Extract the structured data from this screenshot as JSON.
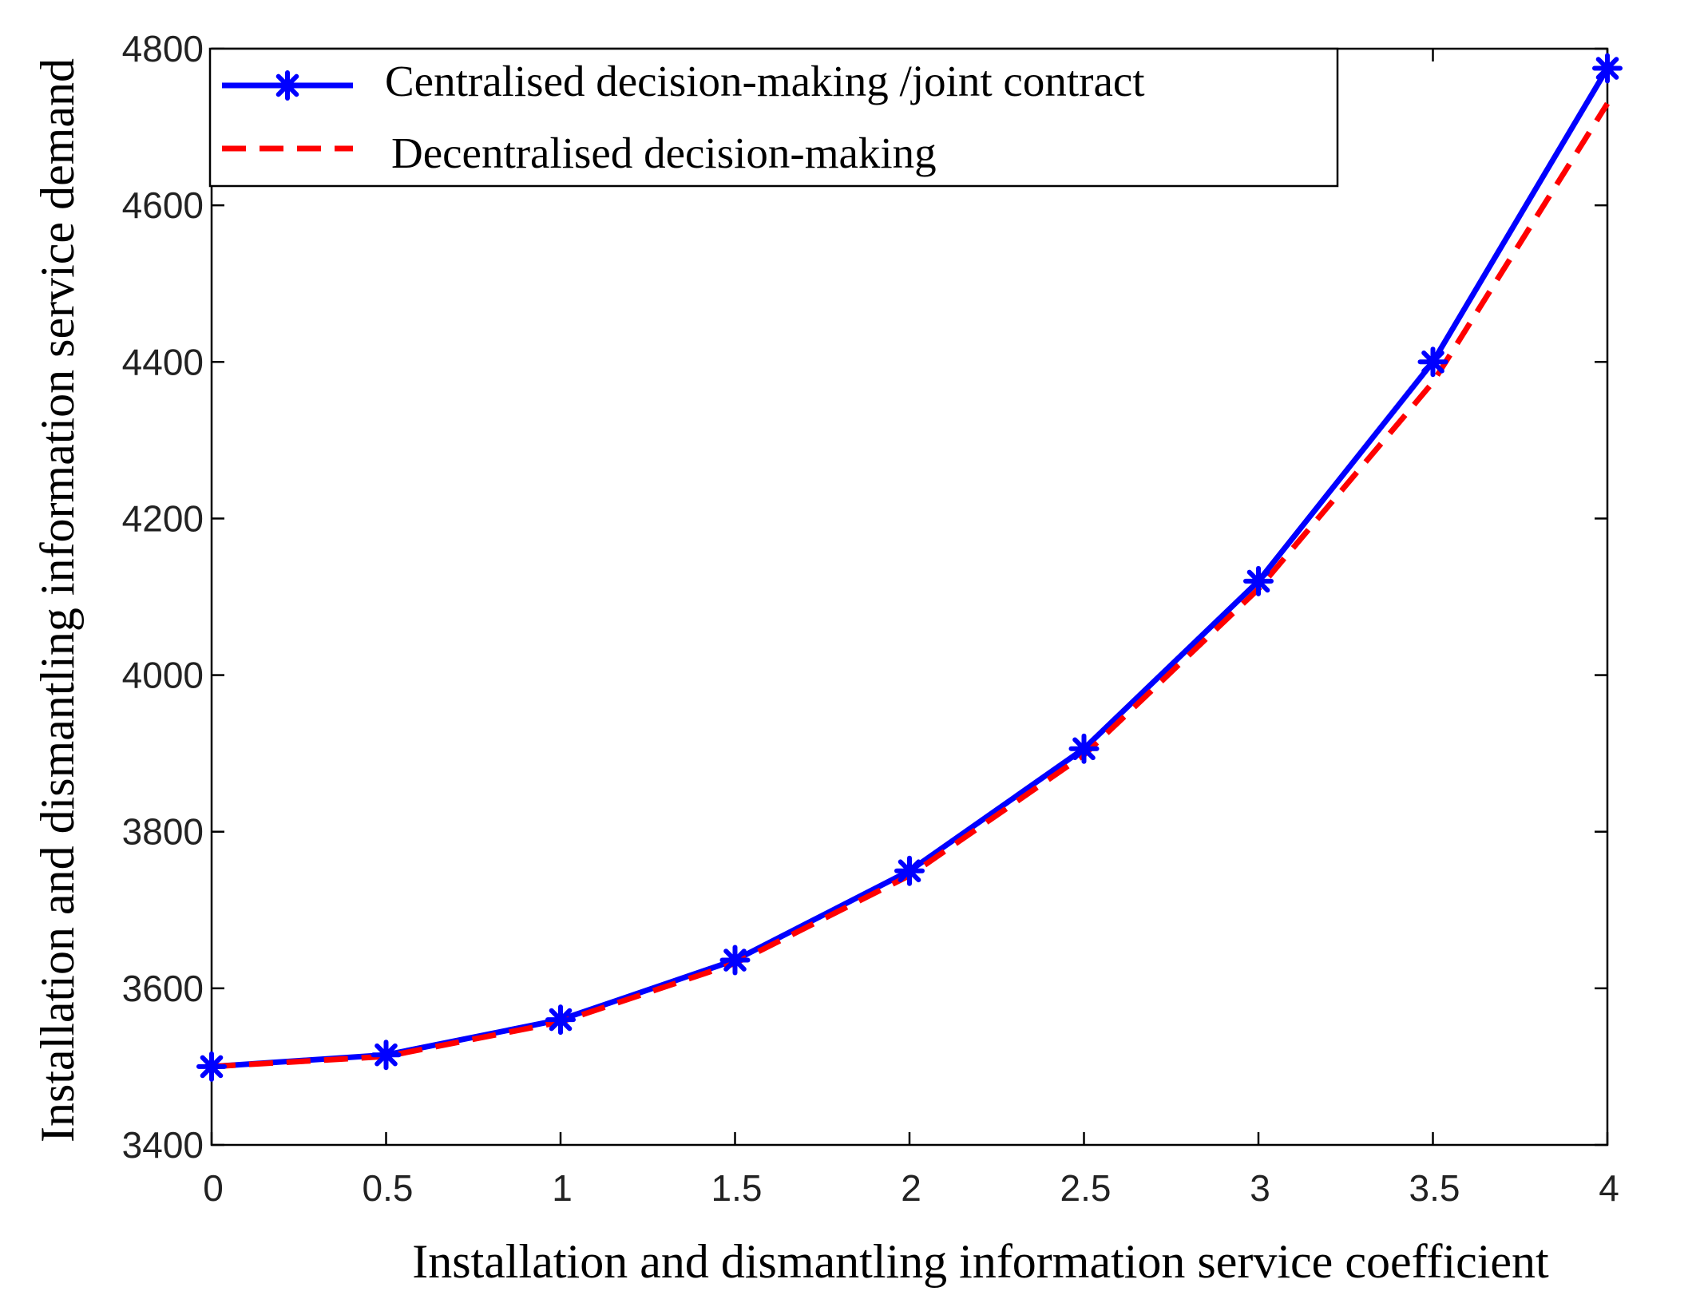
{
  "chart_data": {
    "type": "line",
    "title": "",
    "xlabel": "Installation and dismantling information service coefficient",
    "ylabel": "Installation and dismantling information service demand",
    "xlim": [
      0,
      4
    ],
    "ylim": [
      3400,
      4800
    ],
    "x_ticks": [
      0,
      0.5,
      1,
      1.5,
      2,
      2.5,
      3,
      3.5,
      4
    ],
    "x_tick_labels": [
      "0",
      "0.5",
      "1",
      "1.5",
      "2",
      "2.5",
      "3",
      "3.5",
      "4"
    ],
    "y_ticks": [
      3400,
      3600,
      3800,
      4000,
      4200,
      4400,
      4600,
      4800
    ],
    "y_tick_labels": [
      "3400",
      "3600",
      "3800",
      "4000",
      "4200",
      "4400",
      "4600",
      "4800"
    ],
    "grid": false,
    "legend_position": "top-left",
    "x": [
      0,
      0.5,
      1,
      1.5,
      2,
      2.5,
      3,
      3.5,
      4
    ],
    "series": [
      {
        "name": "Centralised decision-making /joint contract",
        "values": [
          3500,
          3515,
          3560,
          3636,
          3750,
          3906,
          4120,
          4400,
          4775
        ],
        "color": "#0000FF",
        "style": "solid",
        "marker": "asterisk"
      },
      {
        "name": "Decentralised decision-making",
        "values": [
          3500,
          3513,
          3557,
          3632,
          3744,
          3898,
          4110,
          4374,
          4730
        ],
        "color": "#FF0000",
        "style": "dashed",
        "marker": "none"
      }
    ]
  }
}
